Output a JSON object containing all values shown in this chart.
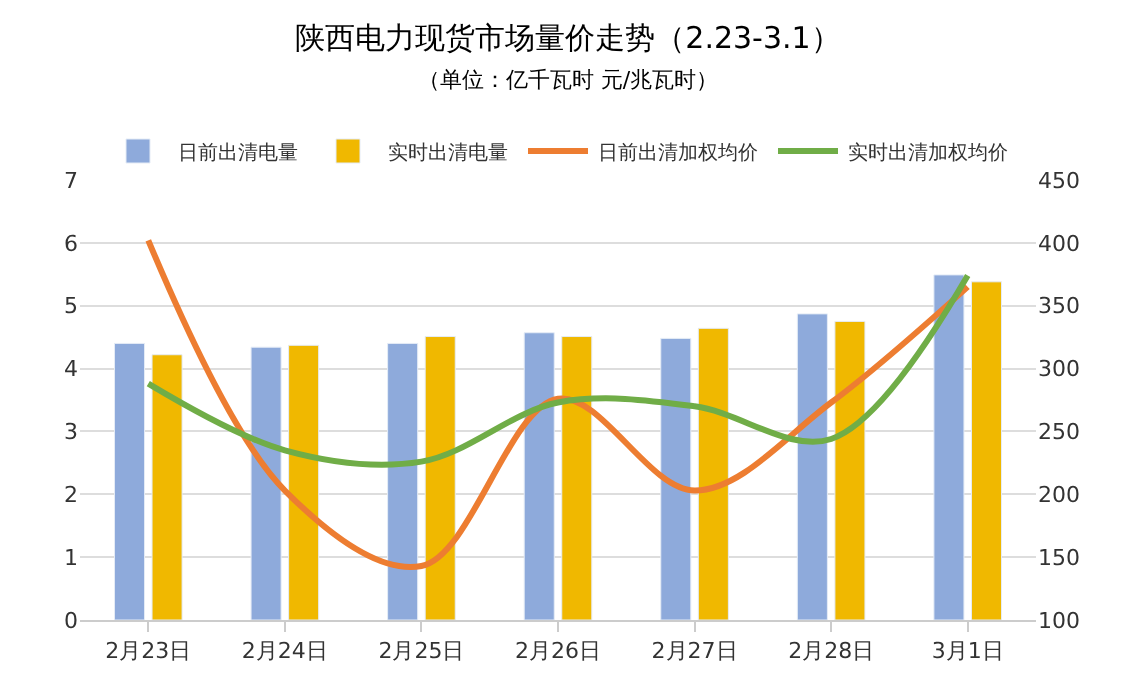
{
  "chart_data": {
    "type": "bar",
    "title": "陕西电力现货市场量价走势（2.23-3.1）",
    "subtitle": "（单位：亿千瓦时 元/兆瓦时）",
    "categories": [
      "2月23日",
      "2月24日",
      "2月25日",
      "2月26日",
      "2月27日",
      "2月28日",
      "3月1日"
    ],
    "series": [
      {
        "name": "日前出清电量",
        "color": "#8eaadb",
        "values": [
          4.4,
          4.34,
          4.4,
          4.57,
          4.48,
          4.87,
          5.49
        ]
      },
      {
        "name": "实时出清电量",
        "color": "#f0b800",
        "values": [
          4.22,
          4.37,
          4.51,
          4.51,
          4.64,
          4.75,
          5.38
        ]
      },
      {
        "name": "日前出清加权均价",
        "type": "line",
        "axis": "y2",
        "color": "#ed7d31",
        "values": [
          402,
          203,
          143,
          276,
          203,
          273,
          365
        ]
      },
      {
        "name": "实时出清加权均价",
        "type": "line",
        "axis": "y2",
        "color": "#70ad47",
        "values": [
          288,
          235,
          226,
          273,
          270,
          244,
          374
        ]
      }
    ],
    "ylim": [
      0,
      7
    ],
    "yticks": [
      0,
      1,
      2,
      3,
      4,
      5,
      6,
      7
    ],
    "y2lim": [
      100,
      450
    ],
    "y2ticks": [
      100,
      150,
      200,
      250,
      300,
      350,
      400,
      450
    ],
    "grid": "y",
    "legend": "top"
  }
}
